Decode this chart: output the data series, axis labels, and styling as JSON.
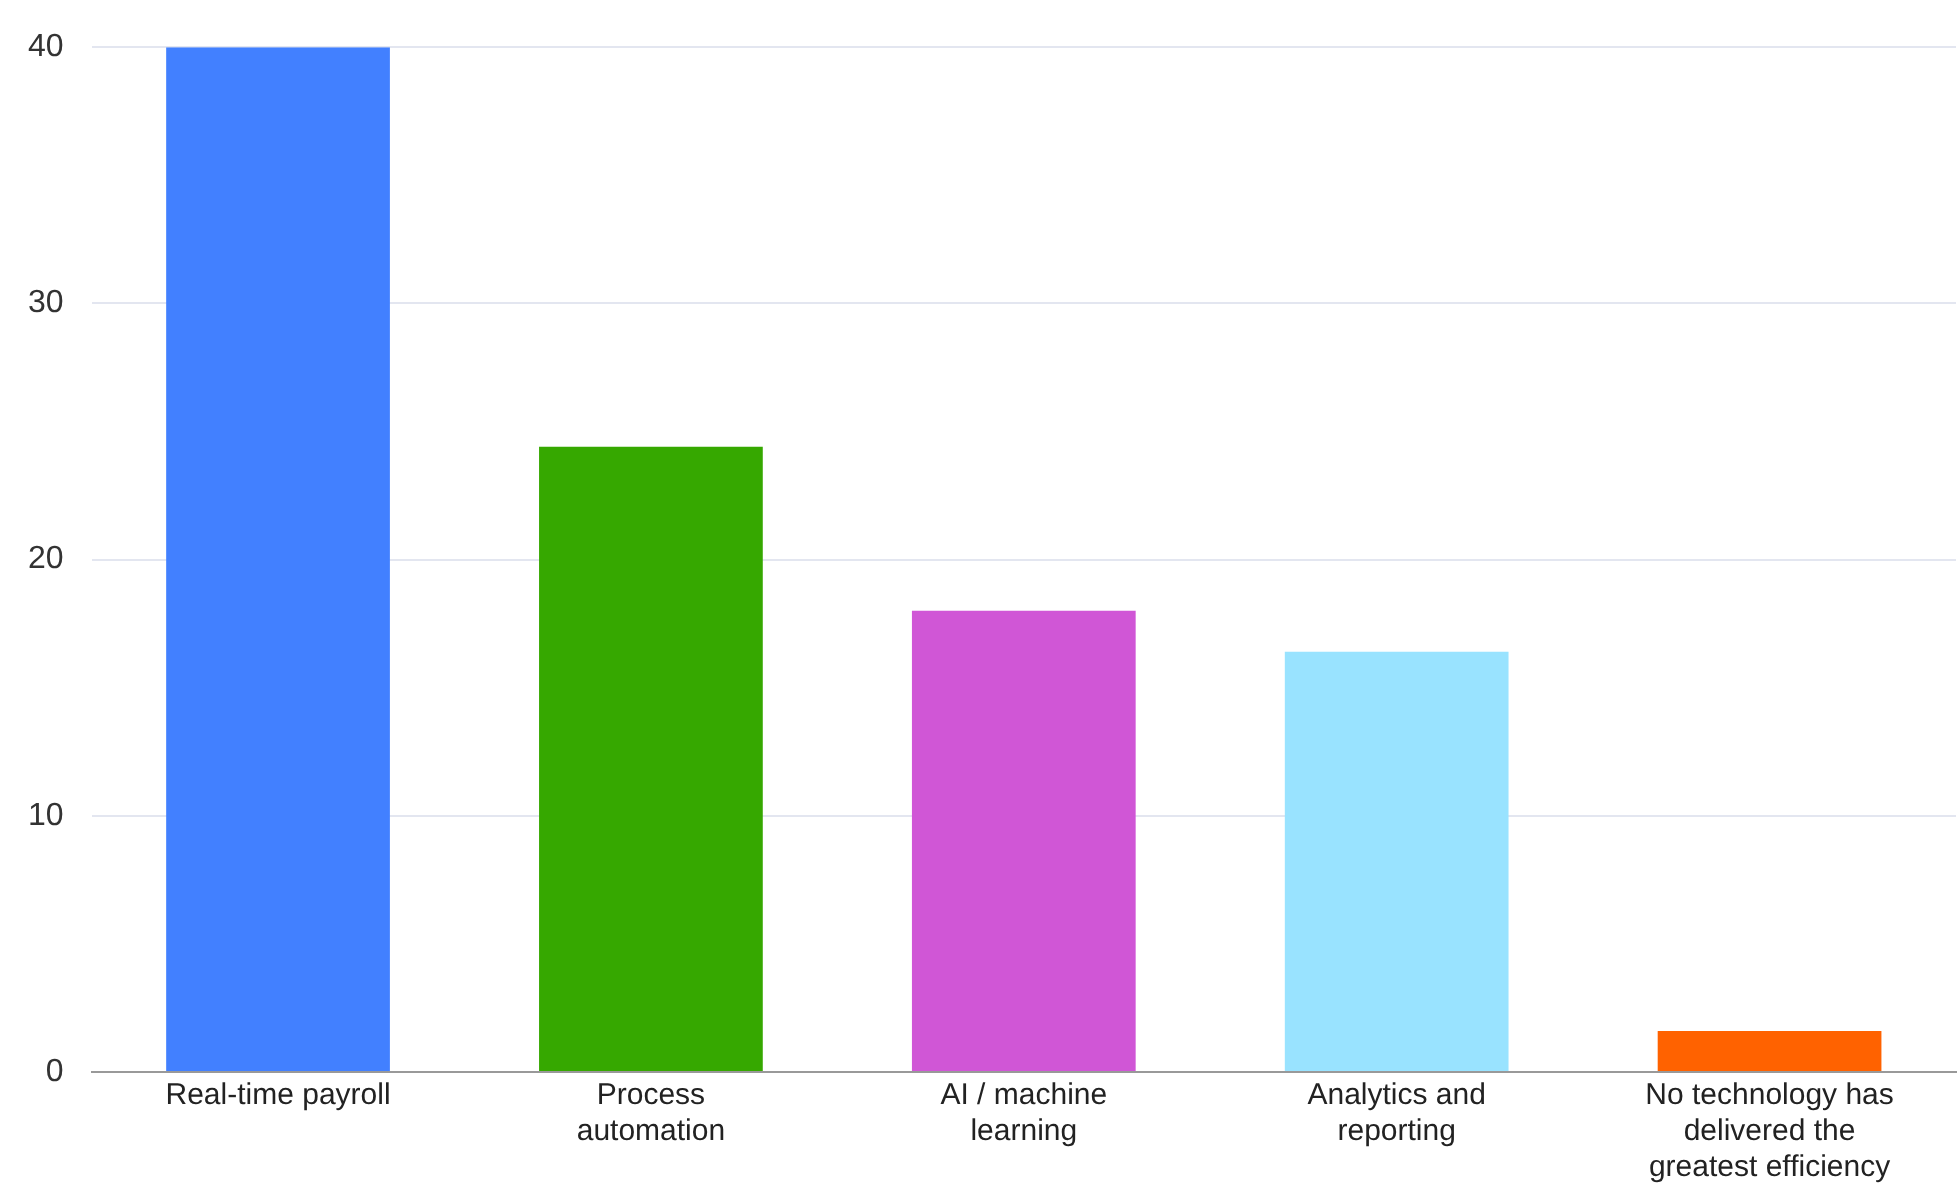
{
  "chart_data": {
    "type": "bar",
    "categories": [
      "Real-time payroll",
      "Process automation",
      "AI / machine learning",
      "Analytics and reporting",
      "No technology has delivered the greatest efficiency"
    ],
    "values": [
      40,
      24.4,
      18,
      16.4,
      1.6
    ],
    "colors": [
      "#4280ff",
      "#36a800",
      "#d056d6",
      "#99e3ff",
      "#ff6200"
    ],
    "ylim": [
      0,
      40
    ],
    "yticks": [
      0,
      10,
      20,
      30,
      40
    ],
    "grid": "y",
    "legend": false
  }
}
